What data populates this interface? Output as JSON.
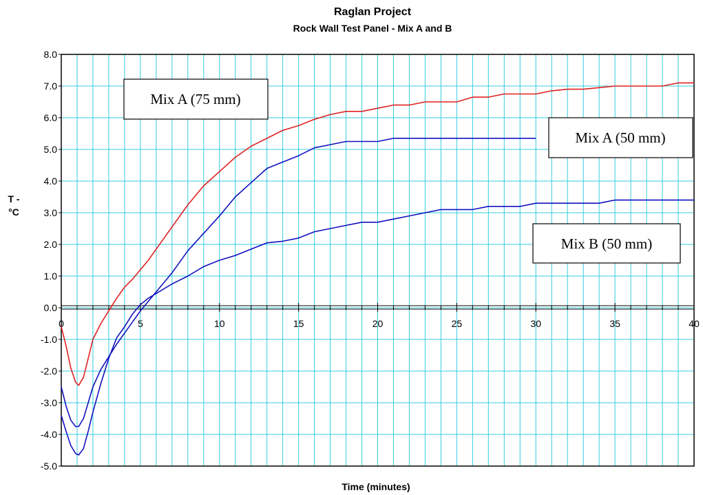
{
  "chart_data": {
    "type": "line",
    "title": "Raglan Project",
    "subtitle": "Rock Wall Test Panel - Mix A and B",
    "xlabel": "Time (minutes)",
    "ylabel_lines": [
      "T -",
      "°C"
    ],
    "xlim": [
      0,
      40
    ],
    "ylim": [
      -5.0,
      8.0
    ],
    "x_ticks": [
      {
        "value": 0,
        "label": "0"
      },
      {
        "value": 5,
        "label": "5"
      },
      {
        "value": 10,
        "label": "10"
      },
      {
        "value": 15,
        "label": "15"
      },
      {
        "value": 20,
        "label": "20"
      },
      {
        "value": 25,
        "label": "25"
      },
      {
        "value": 30,
        "label": "30"
      },
      {
        "value": 35,
        "label": "35"
      },
      {
        "value": 40,
        "label": "40"
      }
    ],
    "y_ticks": [
      {
        "value": 8,
        "label": "8.0"
      },
      {
        "value": 7,
        "label": "7.0"
      },
      {
        "value": 6,
        "label": "6.0"
      },
      {
        "value": 5,
        "label": "5.0"
      },
      {
        "value": 4,
        "label": "4.0"
      },
      {
        "value": 3,
        "label": "3.0"
      },
      {
        "value": 2,
        "label": "2.0"
      },
      {
        "value": 1,
        "label": "1.0"
      },
      {
        "value": 0,
        "label": "0.0"
      },
      {
        "value": -1,
        "label": "-1.0"
      },
      {
        "value": -2,
        "label": "-2.0"
      },
      {
        "value": -3,
        "label": "-3.0"
      },
      {
        "value": -4,
        "label": "-4.0"
      },
      {
        "value": -5,
        "label": "-5.0"
      }
    ],
    "grid": {
      "x_minor_step": 1,
      "y_step": 1,
      "color": "#33ccdd"
    },
    "series": [
      {
        "name": "Mix A (75 mm)",
        "color": "#e02020",
        "points": [
          [
            0,
            -0.6
          ],
          [
            0.3,
            -1.2
          ],
          [
            0.6,
            -1.9
          ],
          [
            0.9,
            -2.35
          ],
          [
            1.1,
            -2.45
          ],
          [
            1.4,
            -2.2
          ],
          [
            1.7,
            -1.6
          ],
          [
            2,
            -1.0
          ],
          [
            2.5,
            -0.5
          ],
          [
            3,
            -0.1
          ],
          [
            3.5,
            0.3
          ],
          [
            4,
            0.65
          ],
          [
            4.5,
            0.9
          ],
          [
            5,
            1.2
          ],
          [
            5.5,
            1.5
          ],
          [
            6,
            1.85
          ],
          [
            7,
            2.55
          ],
          [
            8,
            3.25
          ],
          [
            9,
            3.85
          ],
          [
            10,
            4.3
          ],
          [
            11,
            4.75
          ],
          [
            12,
            5.1
          ],
          [
            13,
            5.35
          ],
          [
            14,
            5.6
          ],
          [
            15,
            5.75
          ],
          [
            16,
            5.95
          ],
          [
            17,
            6.1
          ],
          [
            18,
            6.2
          ],
          [
            19,
            6.2
          ],
          [
            20,
            6.3
          ],
          [
            21,
            6.4
          ],
          [
            22,
            6.4
          ],
          [
            23,
            6.5
          ],
          [
            24,
            6.5
          ],
          [
            25,
            6.5
          ],
          [
            26,
            6.65
          ],
          [
            27,
            6.65
          ],
          [
            28,
            6.75
          ],
          [
            29,
            6.75
          ],
          [
            30,
            6.75
          ],
          [
            31,
            6.85
          ],
          [
            32,
            6.9
          ],
          [
            33,
            6.9
          ],
          [
            34,
            6.95
          ],
          [
            35,
            7.0
          ],
          [
            36,
            7.0
          ],
          [
            37,
            7.0
          ],
          [
            38,
            7.0
          ],
          [
            39,
            7.1
          ],
          [
            40,
            7.1
          ]
        ]
      },
      {
        "name": "Mix A (50 mm)",
        "color": "#1010c0",
        "points": [
          [
            0,
            -2.5
          ],
          [
            0.3,
            -3.1
          ],
          [
            0.6,
            -3.55
          ],
          [
            0.9,
            -3.75
          ],
          [
            1.1,
            -3.75
          ],
          [
            1.4,
            -3.5
          ],
          [
            1.7,
            -3.0
          ],
          [
            2,
            -2.5
          ],
          [
            2.5,
            -1.95
          ],
          [
            3,
            -1.55
          ],
          [
            3.5,
            -1.15
          ],
          [
            4,
            -0.8
          ],
          [
            4.5,
            -0.45
          ],
          [
            5,
            -0.1
          ],
          [
            5.5,
            0.2
          ],
          [
            6,
            0.5
          ],
          [
            7,
            1.1
          ],
          [
            8,
            1.8
          ],
          [
            9,
            2.35
          ],
          [
            10,
            2.9
          ],
          [
            11,
            3.5
          ],
          [
            12,
            3.95
          ],
          [
            13,
            4.4
          ],
          [
            14,
            4.6
          ],
          [
            15,
            4.8
          ],
          [
            16,
            5.05
          ],
          [
            17,
            5.15
          ],
          [
            18,
            5.25
          ],
          [
            19,
            5.25
          ],
          [
            20,
            5.25
          ],
          [
            21,
            5.35
          ],
          [
            22,
            5.35
          ],
          [
            23,
            5.35
          ],
          [
            24,
            5.35
          ],
          [
            25,
            5.35
          ],
          [
            26,
            5.35
          ],
          [
            27,
            5.35
          ],
          [
            28,
            5.35
          ],
          [
            29,
            5.35
          ],
          [
            30,
            5.35
          ]
        ]
      },
      {
        "name": "Mix B (50 mm)",
        "color": "#1010c0",
        "points": [
          [
            0,
            -3.4
          ],
          [
            0.3,
            -3.9
          ],
          [
            0.6,
            -4.35
          ],
          [
            0.9,
            -4.6
          ],
          [
            1.1,
            -4.65
          ],
          [
            1.4,
            -4.45
          ],
          [
            1.7,
            -3.9
          ],
          [
            2,
            -3.3
          ],
          [
            2.5,
            -2.4
          ],
          [
            3,
            -1.6
          ],
          [
            3.5,
            -0.95
          ],
          [
            4,
            -0.6
          ],
          [
            4.5,
            -0.2
          ],
          [
            5,
            0.1
          ],
          [
            5.5,
            0.3
          ],
          [
            6,
            0.45
          ],
          [
            7,
            0.75
          ],
          [
            8,
            1.0
          ],
          [
            9,
            1.3
          ],
          [
            10,
            1.5
          ],
          [
            11,
            1.65
          ],
          [
            12,
            1.85
          ],
          [
            13,
            2.05
          ],
          [
            14,
            2.1
          ],
          [
            15,
            2.2
          ],
          [
            16,
            2.4
          ],
          [
            17,
            2.5
          ],
          [
            18,
            2.6
          ],
          [
            19,
            2.7
          ],
          [
            20,
            2.7
          ],
          [
            21,
            2.8
          ],
          [
            22,
            2.9
          ],
          [
            23,
            3.0
          ],
          [
            24,
            3.1
          ],
          [
            25,
            3.1
          ],
          [
            26,
            3.1
          ],
          [
            27,
            3.2
          ],
          [
            28,
            3.2
          ],
          [
            29,
            3.2
          ],
          [
            30,
            3.3
          ],
          [
            31,
            3.3
          ],
          [
            32,
            3.3
          ],
          [
            33,
            3.3
          ],
          [
            34,
            3.3
          ],
          [
            35,
            3.4
          ],
          [
            36,
            3.4
          ],
          [
            37,
            3.4
          ],
          [
            38,
            3.4
          ],
          [
            39,
            3.4
          ],
          [
            40,
            3.4
          ]
        ]
      }
    ],
    "annotations": [
      {
        "text": "Mix A (75 mm)",
        "series": 0
      },
      {
        "text": "Mix A (50 mm)",
        "series": 1
      },
      {
        "text": "Mix B (50 mm)",
        "series": 2
      }
    ]
  }
}
